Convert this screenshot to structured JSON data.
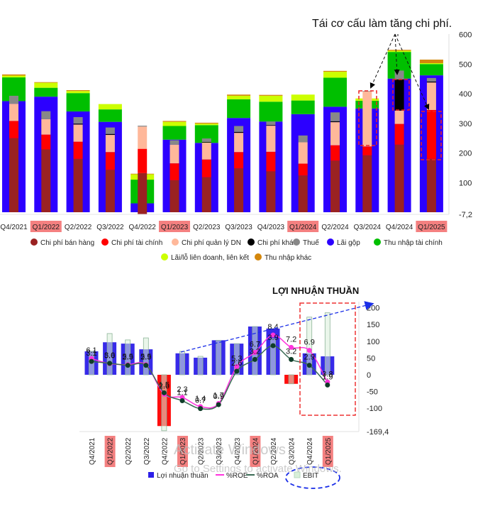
{
  "chart_data": [
    {
      "type": "bar",
      "stacked": true,
      "title": "",
      "annotation": "Tái cơ cấu làm tăng chi phí.",
      "categories": [
        "Q4/2021",
        "Q1/2022",
        "Q2/2022",
        "Q3/2022",
        "Q4/2022",
        "Q1/2023",
        "Q2/2023",
        "Q3/2023",
        "Q4/2023",
        "Q1/2024",
        "Q2/2024",
        "Q3/2024",
        "Q4/2024",
        "Q1/2025"
      ],
      "highlighted_categories": [
        "Q1/2022",
        "Q1/2023",
        "Q1/2024",
        "Q1/2025"
      ],
      "highlighted_bars": [
        "Q3/2024",
        "Q4/2024",
        "Q1/2025"
      ],
      "y_ticks": [
        "600",
        "500",
        "400",
        "300",
        "200",
        "100",
        "-7,2"
      ],
      "ylim": [
        -7.2,
        600
      ],
      "income_series": [
        {
          "name": "Lãi gộp",
          "color": "#2c00ff",
          "values": [
            375,
            390,
            340,
            305,
            30,
            245,
            234,
            318,
            306,
            331,
            356,
            350,
            451,
            462
          ]
        },
        {
          "name": "Thu nhập tài chính",
          "color": "#00bf00",
          "values": [
            80,
            30,
            62,
            42,
            80,
            46,
            60,
            63,
            67,
            46,
            98,
            26,
            90,
            38
          ]
        },
        {
          "name": "Lãi/lỗ liên doanh, liên kết",
          "color": "#ccff00",
          "values": [
            6,
            17,
            7,
            18,
            18,
            14,
            5,
            12,
            20,
            20,
            20,
            8,
            4,
            3
          ]
        },
        {
          "name": "Thu nhập khác",
          "color": "#d4870c",
          "values": [
            4,
            2,
            3,
            0,
            2,
            3,
            3,
            4,
            3,
            0,
            3,
            0,
            3,
            12
          ]
        }
      ],
      "expense_series": [
        {
          "name": "Chi phí bán hàng",
          "color": "#9a2222",
          "values": [
            250,
            212,
            180,
            143,
            132,
            108,
            118,
            148,
            138,
            124,
            174,
            192,
            228,
            180
          ]
        },
        {
          "name": "Chi phí tài chính",
          "color": "#ff0000",
          "values": [
            58,
            50,
            58,
            60,
            82,
            57,
            60,
            55,
            66,
            40,
            52,
            30,
            70,
            165
          ]
        },
        {
          "name": "Chi phí quản lý DN",
          "color": "#ffb89a",
          "values": [
            58,
            52,
            58,
            58,
            75,
            63,
            57,
            65,
            88,
            72,
            78,
            185,
            45,
            93
          ]
        },
        {
          "name": "Chi phí khác",
          "color": "#000000",
          "values": [
            0,
            0,
            3,
            3,
            0,
            0,
            2,
            3,
            2,
            0,
            3,
            0,
            105,
            3
          ]
        },
        {
          "name": "Thuế",
          "color": "#888888",
          "values": [
            27,
            27,
            22,
            22,
            3,
            15,
            12,
            20,
            12,
            23,
            30,
            2,
            30,
            12
          ]
        }
      ],
      "legend": {
        "position": "bottom",
        "items": [
          {
            "label": "Chi phí bán hàng",
            "color": "#9a2222"
          },
          {
            "label": "Chi phí tài chính",
            "color": "#ff0000"
          },
          {
            "label": "Chi phí quản lý DN",
            "color": "#ffb89a"
          },
          {
            "label": "Chi phí khác",
            "color": "#000000"
          },
          {
            "label": "Thuế",
            "color": "#888888"
          },
          {
            "label": "Lãi gộp",
            "color": "#2c00ff"
          },
          {
            "label": "Thu nhập tài chính",
            "color": "#00bf00"
          },
          {
            "label": "Lãi/lỗ liên doanh, liên kết",
            "color": "#ccff00"
          },
          {
            "label": "Thu nhập khác",
            "color": "#d4870c"
          }
        ]
      }
    },
    {
      "type": "bar",
      "title": "LỢI NHUẬN THUẦN",
      "categories": [
        "Q4/2021",
        "Q1/2022",
        "Q2/2022",
        "Q3/2022",
        "Q4/2022",
        "Q1/2023",
        "Q2/2023",
        "Q3/2023",
        "Q4/2023",
        "Q1/2024",
        "Q2/2024",
        "Q3/2024",
        "Q4/2024",
        "Q1/2025"
      ],
      "highlighted_categories": [
        "Q1/2022",
        "Q1/2023",
        "Q1/2024",
        "Q1/2025"
      ],
      "y_ticks": [
        "200",
        "150",
        "100",
        "50",
        "0",
        "-50",
        "-100",
        "-169,4"
      ],
      "ylim": [
        -169.4,
        200
      ],
      "series": [
        {
          "name": "Lợi nhuận thuần",
          "kind": "bar",
          "color": "#2c1fe8",
          "negative_color": "#ff0000",
          "values": [
            70,
            97,
            93,
            76,
            -153,
            64,
            51,
            103,
            93,
            144,
            138,
            -27,
            64,
            55
          ]
        },
        {
          "name": "EBIT",
          "kind": "bar",
          "color": "#d8efd8",
          "values": [
            70,
            123,
            104,
            110,
            -167,
            70,
            55,
            103,
            93,
            144,
            108,
            -27,
            172,
            185
          ]
        },
        {
          "name": "%ROE",
          "kind": "line",
          "color": "#ff33dd",
          "values": [
            6.1,
            5.6,
            5.5,
            5.5,
            2.6,
            2.3,
            1.4,
            1.7,
            5.3,
            6.7,
            8.4,
            7.2,
            6.9,
            3.8
          ],
          "labels": [
            "6.1",
            "5.6",
            "5.5",
            "5.5",
            "2.6",
            "2.3",
            "1.4",
            "1.7",
            "5.3",
            "6.7",
            "8.4",
            "7.2",
            "6.9",
            "3.8"
          ]
        },
        {
          "name": "%ROA",
          "kind": "line",
          "color": "#3a6b55",
          "values": [
            3.1,
            3.0,
            2.9,
            2.9,
            1.5,
            1.1,
            0.7,
            0.9,
            2.6,
            3.2,
            3.9,
            3.2,
            2.9,
            1.9
          ],
          "labels": [
            "3.1",
            "3.0",
            "2.9",
            "2.9",
            "1.5",
            "1.1",
            "0.7",
            "0.9",
            "2.6",
            "3.2",
            "3.9",
            "3.2",
            "2.9",
            "1.9"
          ]
        }
      ],
      "legend": {
        "position": "bottom",
        "items": [
          {
            "label": "Lợi nhuận thuần",
            "color": "#2c1fe8",
            "kind": "square"
          },
          {
            "label": "%ROE",
            "color": "#ff33dd",
            "kind": "line"
          },
          {
            "label": "%ROA",
            "color": "#3a6b55",
            "kind": "line"
          },
          {
            "label": "EBIT",
            "color": "#d8efd8",
            "kind": "square"
          }
        ]
      }
    }
  ],
  "watermark": {
    "line1": "Activate Windows",
    "line2": "Go to Settings to activate Windows."
  }
}
